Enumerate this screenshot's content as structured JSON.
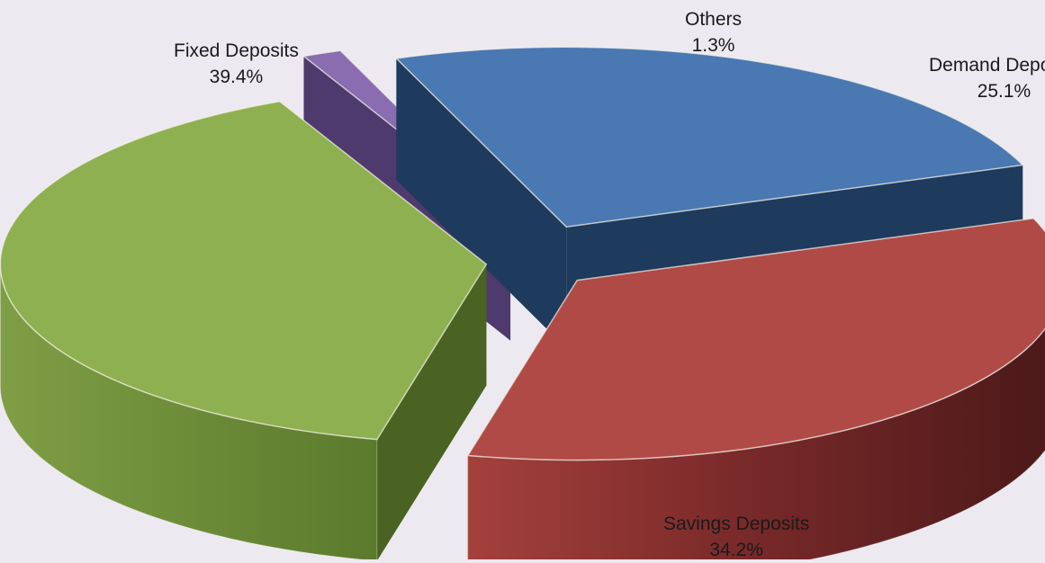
{
  "chart_data": {
    "type": "pie",
    "title": "",
    "legend": "none",
    "slices": [
      {
        "name": "Fixed Deposits",
        "value": 39.4,
        "label": "39.4%",
        "color": "#8fb050",
        "side_color": "#4a6323"
      },
      {
        "name": "Others",
        "value": 1.3,
        "label": "1.3%",
        "color": "#8a6cb0",
        "side_color": "#4e3a6c"
      },
      {
        "name": "Demand Deposits",
        "value": 25.1,
        "label": "25.1%",
        "color": "#4a78b2",
        "side_color": "#1e3a5c"
      },
      {
        "name": "Savings Deposits",
        "value": 34.2,
        "label": "34.2%",
        "color": "#b04a46",
        "side_color": "#5a1c1c"
      }
    ]
  }
}
